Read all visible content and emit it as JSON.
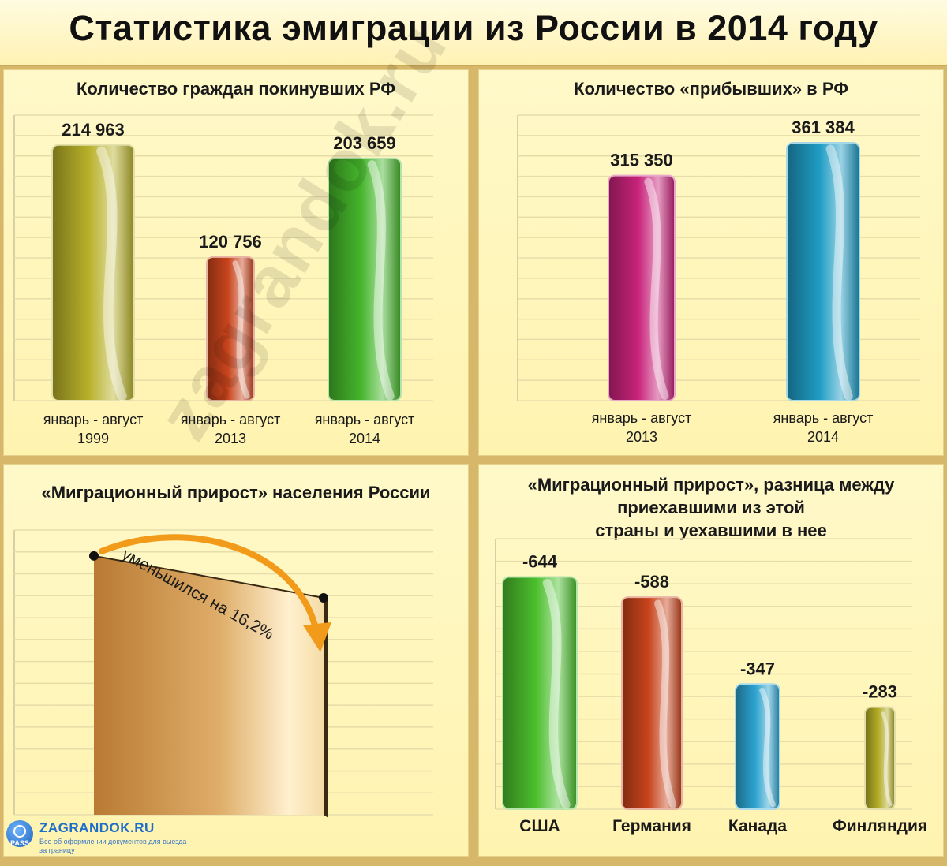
{
  "title": "Статистика эмиграции из России в 2014 году",
  "watermark": "zagrandok.ru",
  "logo": {
    "badge": "PASS",
    "name": "ZAGRANDOK.RU",
    "tagline": "Все об оформлении документов для выезда за границу"
  },
  "chart_data": [
    {
      "type": "bar",
      "title": "Количество граждан покинувших РФ",
      "categories": [
        [
          "январь - август",
          "1999"
        ],
        [
          "январь - август",
          "2013"
        ],
        [
          "январь - август",
          "2014"
        ]
      ],
      "values": [
        214963,
        120756,
        203659
      ],
      "value_labels": [
        "214 963",
        "120 756",
        "203 659"
      ],
      "colors": [
        "#b8b12a",
        "#c8441c",
        "#45b52b"
      ],
      "ylim": [
        0,
        240000
      ],
      "grid": true
    },
    {
      "type": "bar",
      "title": "Количество «прибывших» в РФ",
      "categories": [
        [
          "январь - август",
          "2013"
        ],
        [
          "январь - август",
          "2014"
        ]
      ],
      "values": [
        315350,
        361384
      ],
      "value_labels": [
        "315 350",
        "361 384"
      ],
      "colors": [
        "#c8237a",
        "#1f9cc4"
      ],
      "ylim": [
        0,
        400000
      ],
      "grid": true
    },
    {
      "type": "area",
      "title": "«Миграционный прирост» населения России",
      "annotation": "уменьшился на 16,2%",
      "values": [
        100,
        83.8
      ],
      "ylim": [
        0,
        110
      ],
      "grid": true
    },
    {
      "type": "bar",
      "title": [
        "«Миграционный прирост», разница между",
        "приехавшими из этой",
        "страны и уехавшими в нее"
      ],
      "categories": [
        "США",
        "Германия",
        "Канада",
        "Финляндия"
      ],
      "values": [
        -644,
        -588,
        -347,
        -283
      ],
      "value_labels": [
        "-644",
        "-588",
        "-347",
        "-283"
      ],
      "colors": [
        "#4cbf2d",
        "#c8441c",
        "#2da3cf",
        "#b3ad27"
      ],
      "ylim": [
        0,
        750
      ],
      "grid": true
    }
  ]
}
